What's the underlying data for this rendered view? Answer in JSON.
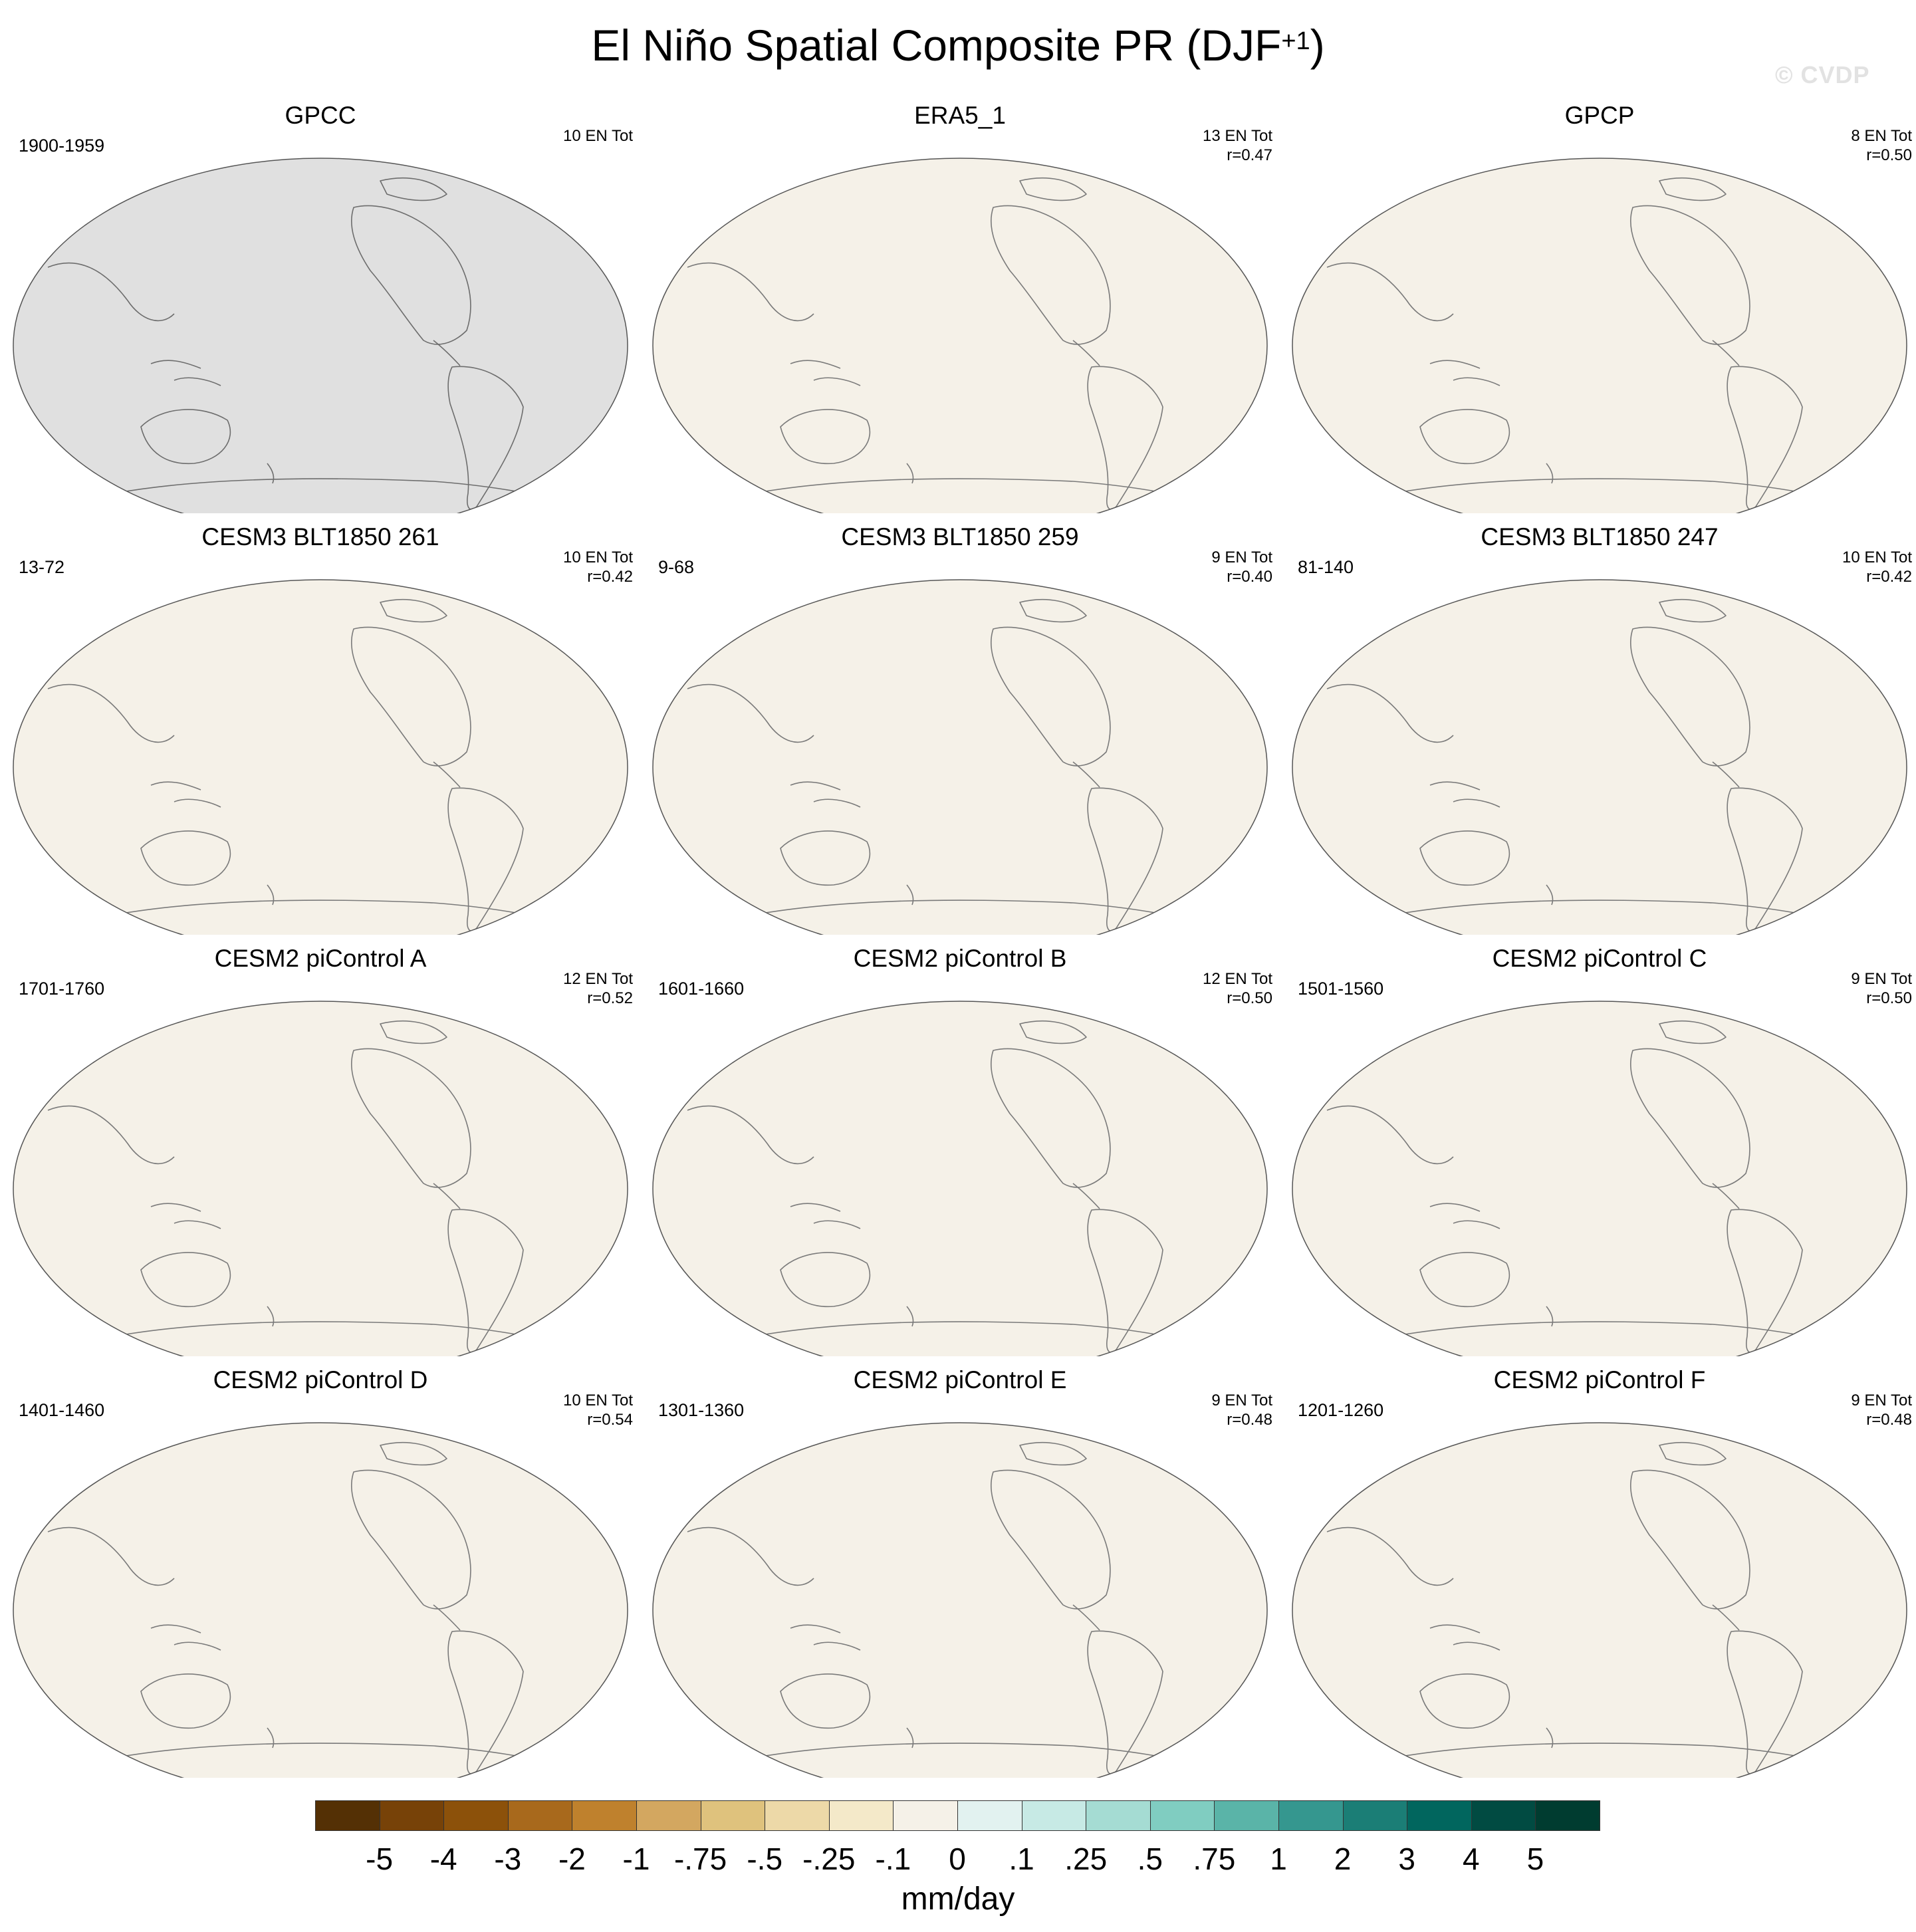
{
  "figure": {
    "title_main": "El Niño Spatial Composite PR (DJF",
    "title_sup": "+1",
    "title_end": ")",
    "watermark": "© CVDP"
  },
  "panels": [
    {
      "title": "GPCC",
      "years": "1900-1959",
      "stats_line1": "10 EN Tot",
      "stats_line2": "",
      "style": "obs_land"
    },
    {
      "title": "ERA5_1",
      "years": "",
      "stats_line1": "13 EN Tot",
      "stats_line2": "r=0.47",
      "style": "era5"
    },
    {
      "title": "GPCP",
      "years": "",
      "stats_line1": "8 EN Tot",
      "stats_line2": "r=0.50",
      "style": "gpcp"
    },
    {
      "title": "CESM3 BLT1850 261",
      "years": "13-72",
      "stats_line1": "10 EN Tot",
      "stats_line2": "r=0.42",
      "style": "cesm3"
    },
    {
      "title": "CESM3 BLT1850 259",
      "years": "9-68",
      "stats_line1": "9 EN Tot",
      "stats_line2": "r=0.40",
      "style": "cesm3"
    },
    {
      "title": "CESM3 BLT1850 247",
      "years": "81-140",
      "stats_line1": "10 EN Tot",
      "stats_line2": "r=0.42",
      "style": "cesm3"
    },
    {
      "title": "CESM2 piControl A",
      "years": "1701-1760",
      "stats_line1": "12 EN Tot",
      "stats_line2": "r=0.52",
      "style": "cesm2"
    },
    {
      "title": "CESM2 piControl B",
      "years": "1601-1660",
      "stats_line1": "12 EN Tot",
      "stats_line2": "r=0.50",
      "style": "cesm2"
    },
    {
      "title": "CESM2 piControl C",
      "years": "1501-1560",
      "stats_line1": "9 EN Tot",
      "stats_line2": "r=0.50",
      "style": "cesm2"
    },
    {
      "title": "CESM2 piControl D",
      "years": "1401-1460",
      "stats_line1": "10 EN Tot",
      "stats_line2": "r=0.54",
      "style": "cesm2"
    },
    {
      "title": "CESM2 piControl E",
      "years": "1301-1360",
      "stats_line1": "9 EN Tot",
      "stats_line2": "r=0.48",
      "style": "cesm2"
    },
    {
      "title": "CESM2 piControl F",
      "years": "1201-1260",
      "stats_line1": "9 EN Tot",
      "stats_line2": "r=0.48",
      "style": "cesm2"
    }
  ],
  "colorbar": {
    "labels": [
      "-5",
      "-4",
      "-3",
      "-2",
      "-1",
      "-.75",
      "-.5",
      "-.25",
      "-.1",
      "0",
      ".1",
      ".25",
      ".5",
      ".75",
      "1",
      "2",
      "3",
      "4",
      "5"
    ],
    "colors": [
      "#543005",
      "#774208",
      "#8c510a",
      "#a8691c",
      "#bf812d",
      "#d3a760",
      "#dfc27d",
      "#edd9a8",
      "#f4e9c9",
      "#f5f1e8",
      "#e2f2f0",
      "#c7eae5",
      "#a5dcd3",
      "#80cdc1",
      "#5ab4a8",
      "#35978f",
      "#1b7e76",
      "#01665e",
      "#014b42",
      "#003c30"
    ],
    "units": "mm/day"
  }
}
